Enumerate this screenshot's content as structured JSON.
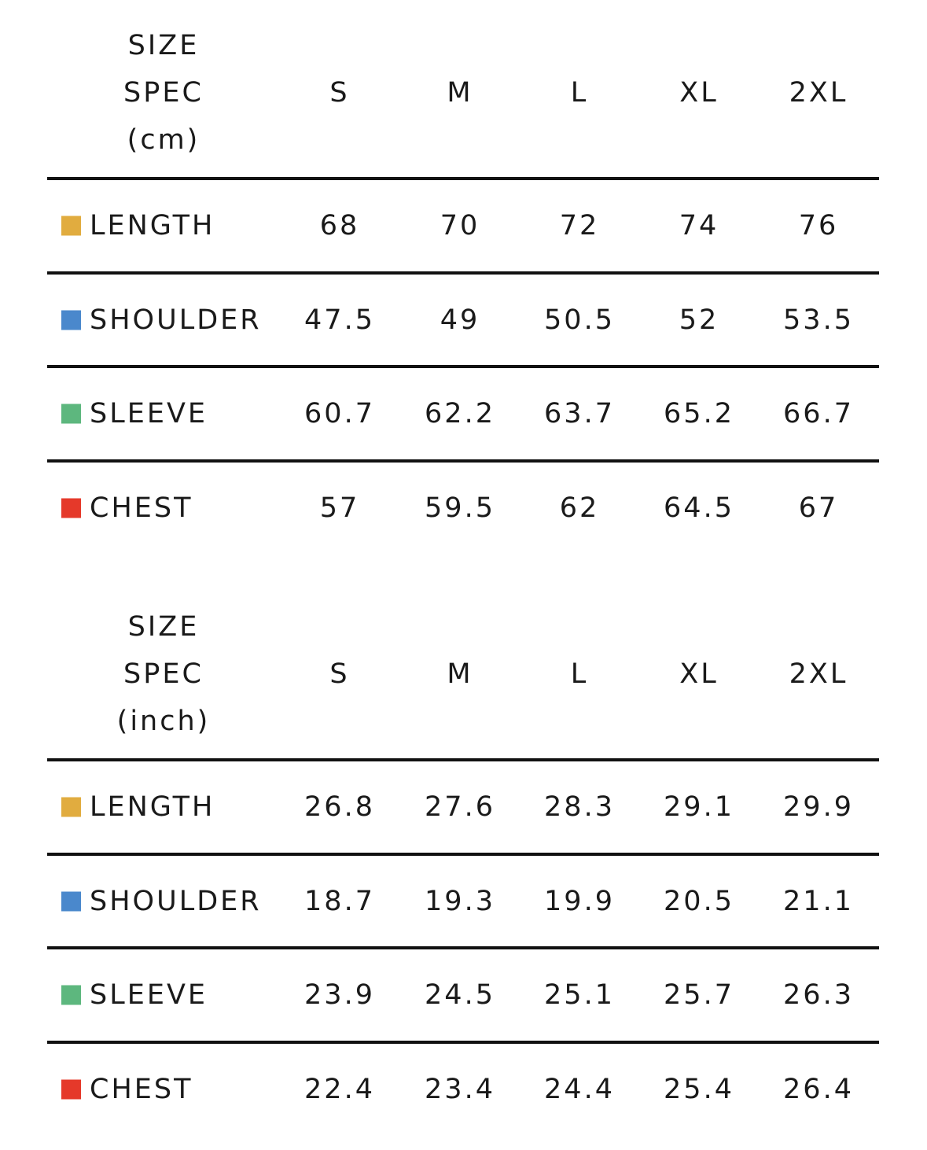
{
  "tables": [
    {
      "header": [
        "SIZE",
        "SPEC",
        "(cm)"
      ],
      "columns": [
        "S",
        "M",
        "L",
        "XL",
        "2XL"
      ],
      "rows": [
        {
          "label": "LENGTH",
          "values": [
            "68",
            "70",
            "72",
            "74",
            "76"
          ]
        },
        {
          "label": "SHOULDER",
          "values": [
            "47.5",
            "49",
            "50.5",
            "52",
            "53.5"
          ]
        },
        {
          "label": "SLEEVE",
          "values": [
            "60.7",
            "62.2",
            "63.7",
            "65.2",
            "66.7"
          ]
        },
        {
          "label": "CHEST",
          "values": [
            "57",
            "59.5",
            "62",
            "64.5",
            "67"
          ]
        }
      ]
    },
    {
      "header": [
        "SIZE",
        "SPEC",
        "(inch)"
      ],
      "columns": [
        "S",
        "M",
        "L",
        "XL",
        "2XL"
      ],
      "rows": [
        {
          "label": "LENGTH",
          "values": [
            "26.8",
            "27.6",
            "28.3",
            "29.1",
            "29.9"
          ]
        },
        {
          "label": "SHOULDER",
          "values": [
            "18.7",
            "19.3",
            "19.9",
            "20.5",
            "21.1"
          ]
        },
        {
          "label": "SLEEVE",
          "values": [
            "23.9",
            "24.5",
            "25.1",
            "25.7",
            "26.3"
          ]
        },
        {
          "label": "CHEST",
          "values": [
            "22.4",
            "23.4",
            "24.4",
            "25.4",
            "26.4"
          ]
        }
      ]
    }
  ]
}
